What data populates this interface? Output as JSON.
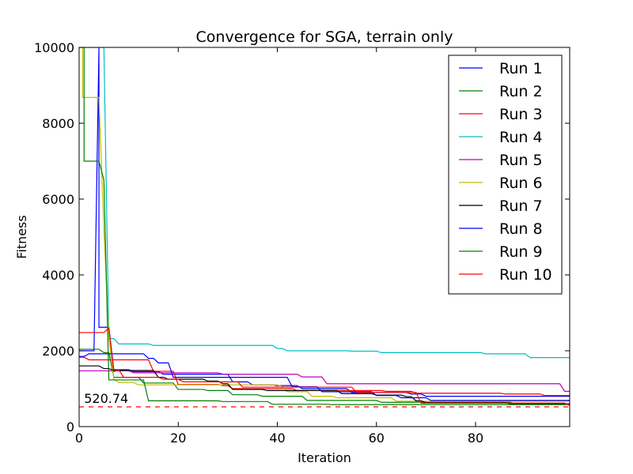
{
  "chart_data": {
    "type": "line",
    "title": "Convergence for SGA, terrain only",
    "xlabel": "Iteration",
    "ylabel": "Fitness",
    "xlim": [
      0,
      99
    ],
    "ylim": [
      0,
      10000
    ],
    "xticks": [
      0,
      20,
      40,
      60,
      80
    ],
    "yticks": [
      0,
      2000,
      4000,
      6000,
      8000,
      10000
    ],
    "grid": false,
    "legend_position": "top-right",
    "reference_line": {
      "value": 520.74,
      "label": "520.74",
      "color": "#ff0000",
      "style": "dashed"
    },
    "series": [
      {
        "name": "Run 1",
        "color": "#0000ff",
        "points": [
          [
            0,
            2000
          ],
          [
            3,
            2000
          ],
          [
            4,
            10000
          ],
          [
            4,
            2620
          ],
          [
            6,
            2620
          ],
          [
            7,
            1500
          ],
          [
            10,
            1500
          ],
          [
            11,
            1450
          ],
          [
            16,
            1450
          ],
          [
            17,
            1380
          ],
          [
            30,
            1380
          ],
          [
            31,
            1180
          ],
          [
            34,
            1180
          ],
          [
            35,
            1100
          ],
          [
            39,
            1100
          ],
          [
            40,
            1080
          ],
          [
            44,
            1080
          ],
          [
            45,
            1000
          ],
          [
            54,
            1000
          ],
          [
            55,
            900
          ],
          [
            66,
            900
          ],
          [
            67,
            860
          ],
          [
            69,
            860
          ],
          [
            70,
            800
          ],
          [
            99,
            800
          ]
        ]
      },
      {
        "name": "Run 2",
        "color": "#008000",
        "points": [
          [
            0,
            2040
          ],
          [
            4,
            2040
          ],
          [
            5,
            1950
          ],
          [
            6,
            1950
          ],
          [
            7,
            1300
          ],
          [
            12,
            1300
          ],
          [
            13,
            1150
          ],
          [
            19,
            1150
          ],
          [
            20,
            980
          ],
          [
            25,
            980
          ],
          [
            26,
            950
          ],
          [
            30,
            950
          ],
          [
            31,
            840
          ],
          [
            36,
            840
          ],
          [
            37,
            800
          ],
          [
            45,
            800
          ],
          [
            46,
            690
          ],
          [
            60,
            690
          ],
          [
            61,
            640
          ],
          [
            87,
            640
          ],
          [
            88,
            600
          ],
          [
            99,
            600
          ]
        ]
      },
      {
        "name": "Run 3",
        "color": "#ff0000",
        "points": [
          [
            0,
            1830
          ],
          [
            1,
            1830
          ],
          [
            2,
            1760
          ],
          [
            14,
            1760
          ],
          [
            15,
            1460
          ],
          [
            19,
            1460
          ],
          [
            20,
            1110
          ],
          [
            28,
            1110
          ],
          [
            29,
            1080
          ],
          [
            30,
            1080
          ],
          [
            31,
            1000
          ],
          [
            43,
            1000
          ],
          [
            44,
            950
          ],
          [
            61,
            950
          ],
          [
            62,
            930
          ],
          [
            67,
            930
          ],
          [
            68,
            880
          ],
          [
            85,
            880
          ],
          [
            86,
            860
          ],
          [
            93,
            860
          ],
          [
            94,
            820
          ],
          [
            99,
            820
          ]
        ]
      },
      {
        "name": "Run 4",
        "color": "#00bfbf",
        "points": [
          [
            0,
            10000
          ],
          [
            5,
            10000
          ],
          [
            6,
            2320
          ],
          [
            7,
            2320
          ],
          [
            8,
            2180
          ],
          [
            14,
            2180
          ],
          [
            15,
            2140
          ],
          [
            39,
            2140
          ],
          [
            40,
            2060
          ],
          [
            41,
            2060
          ],
          [
            42,
            2000
          ],
          [
            54,
            2000
          ],
          [
            55,
            1990
          ],
          [
            60,
            1990
          ],
          [
            61,
            1950
          ],
          [
            81,
            1950
          ],
          [
            82,
            1920
          ],
          [
            90,
            1920
          ],
          [
            91,
            1820
          ],
          [
            99,
            1820
          ]
        ]
      },
      {
        "name": "Run 5",
        "color": "#bf00bf",
        "points": [
          [
            0,
            1470
          ],
          [
            10,
            1470
          ],
          [
            11,
            1420
          ],
          [
            28,
            1420
          ],
          [
            29,
            1380
          ],
          [
            44,
            1380
          ],
          [
            45,
            1310
          ],
          [
            49,
            1310
          ],
          [
            50,
            1130
          ],
          [
            97,
            1130
          ],
          [
            98,
            930
          ],
          [
            99,
            930
          ]
        ]
      },
      {
        "name": "Run 6",
        "color": "#bfbf00",
        "points": [
          [
            0,
            10000
          ],
          [
            0.7,
            10000
          ],
          [
            0.7,
            8680
          ],
          [
            4,
            8680
          ],
          [
            5,
            5200
          ],
          [
            6,
            2350
          ],
          [
            7,
            1250
          ],
          [
            8,
            1160
          ],
          [
            11,
            1160
          ],
          [
            12,
            1100
          ],
          [
            40,
            1100
          ],
          [
            41,
            1060
          ],
          [
            42,
            920
          ],
          [
            46,
            920
          ],
          [
            47,
            800
          ],
          [
            51,
            800
          ],
          [
            52,
            760
          ],
          [
            63,
            760
          ],
          [
            64,
            670
          ],
          [
            99,
            670
          ]
        ]
      },
      {
        "name": "Run 7",
        "color": "#000000",
        "points": [
          [
            0,
            1600
          ],
          [
            4,
            1600
          ],
          [
            5,
            1530
          ],
          [
            6,
            1530
          ],
          [
            7,
            1480
          ],
          [
            15,
            1480
          ],
          [
            16,
            1300
          ],
          [
            17,
            1300
          ],
          [
            18,
            1250
          ],
          [
            25,
            1250
          ],
          [
            26,
            1200
          ],
          [
            28,
            1200
          ],
          [
            29,
            1130
          ],
          [
            30,
            1130
          ],
          [
            31,
            980
          ],
          [
            37,
            980
          ],
          [
            38,
            950
          ],
          [
            52,
            950
          ],
          [
            53,
            870
          ],
          [
            59,
            870
          ],
          [
            60,
            830
          ],
          [
            65,
            830
          ],
          [
            66,
            790
          ],
          [
            67,
            790
          ],
          [
            68,
            680
          ],
          [
            69,
            680
          ],
          [
            70,
            630
          ],
          [
            86,
            630
          ],
          [
            87,
            600
          ],
          [
            99,
            600
          ]
        ]
      },
      {
        "name": "Run 8",
        "color": "#0000ff",
        "points": [
          [
            0,
            1850
          ],
          [
            1,
            1850
          ],
          [
            2,
            1920
          ],
          [
            13,
            1920
          ],
          [
            14,
            1800
          ],
          [
            15,
            1800
          ],
          [
            16,
            1680
          ],
          [
            18,
            1680
          ],
          [
            19,
            1300
          ],
          [
            42,
            1300
          ],
          [
            43,
            1050
          ],
          [
            48,
            1050
          ],
          [
            49,
            920
          ],
          [
            59,
            920
          ],
          [
            60,
            820
          ],
          [
            64,
            820
          ],
          [
            65,
            760
          ],
          [
            70,
            760
          ],
          [
            71,
            690
          ],
          [
            99,
            690
          ]
        ]
      },
      {
        "name": "Run 9",
        "color": "#008000",
        "points": [
          [
            0,
            10000
          ],
          [
            1,
            10000
          ],
          [
            1,
            7000
          ],
          [
            4,
            7000
          ],
          [
            5,
            6500
          ],
          [
            6,
            1230
          ],
          [
            13,
            1230
          ],
          [
            14,
            680
          ],
          [
            20,
            680
          ],
          [
            28,
            680
          ],
          [
            29,
            660
          ],
          [
            38,
            660
          ],
          [
            39,
            590
          ],
          [
            50,
            590
          ],
          [
            51,
            580
          ],
          [
            99,
            580
          ]
        ]
      },
      {
        "name": "Run 10",
        "color": "#ff0000",
        "points": [
          [
            0,
            2480
          ],
          [
            5,
            2480
          ],
          [
            6,
            2600
          ],
          [
            7,
            1450
          ],
          [
            8,
            1500
          ],
          [
            9,
            1300
          ],
          [
            16,
            1300
          ],
          [
            17,
            1250
          ],
          [
            20,
            1250
          ],
          [
            21,
            1180
          ],
          [
            32,
            1180
          ],
          [
            33,
            1040
          ],
          [
            55,
            1040
          ],
          [
            56,
            900
          ],
          [
            68,
            900
          ],
          [
            69,
            620
          ],
          [
            98,
            620
          ],
          [
            99,
            560
          ]
        ]
      }
    ]
  }
}
